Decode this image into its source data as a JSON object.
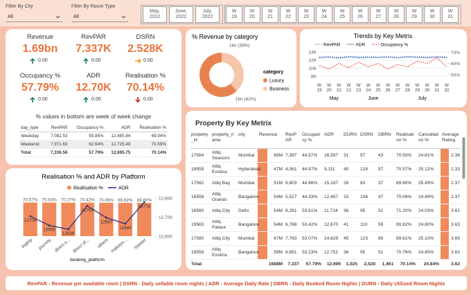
{
  "filters": [
    {
      "label": "Filter By City",
      "value": "All"
    },
    {
      "label": "Filter By Room Type",
      "value": "All"
    }
  ],
  "months": [
    "May, 2022",
    "June, 2022",
    "July, 2022"
  ],
  "weeks": [
    "W 19",
    "W 20",
    "W 21",
    "W 22",
    "W 23",
    "W 24",
    "W 25",
    "W 26",
    "W 27",
    "W 28",
    "W 29",
    "W 30",
    "W 31"
  ],
  "kpis": [
    {
      "title": "Revenue",
      "value": "1.69bn",
      "change": "0.00",
      "trend": "up"
    },
    {
      "title": "RevPAR",
      "value": "7.337K",
      "change": "0.00",
      "trend": "up"
    },
    {
      "title": "DSRN",
      "value": "2.528K",
      "change": "0.00",
      "trend": "flat"
    },
    {
      "title": "Occupancy %",
      "value": "57.79%",
      "change": "0.00",
      "trend": "up"
    },
    {
      "title": "ADR",
      "value": "12.70K",
      "change": "0.00",
      "trend": "up"
    },
    {
      "title": "Realisation %",
      "value": "70.14%",
      "change": "0.00",
      "trend": "down"
    }
  ],
  "kpi_note": "% values in bottom are week of week change",
  "day_type_table": {
    "columns": [
      "day_type",
      "RevPAR",
      "Occupancy %",
      "ADR",
      "Realisation %"
    ],
    "rows": [
      [
        "Weekday",
        "7,082.53",
        "55.85%",
        "12,485.84",
        "69.94%"
      ],
      [
        "Weekend",
        "7,971.63",
        "62.64%",
        "12,725.49",
        "70.59%"
      ],
      [
        "Total",
        "7,336.56",
        "57.79%",
        "12,695.75",
        "70.14%"
      ]
    ]
  },
  "chart_data": [
    {
      "type": "pie",
      "title": "% Revenue by category",
      "legend_title": "category",
      "categories": [
        "Luxury",
        "Business"
      ],
      "values": [
        62,
        38
      ],
      "value_labels": [
        "1bn (62%)",
        "1bn (38%)"
      ],
      "colors": [
        "#e8834f",
        "#f6c6aa"
      ]
    },
    {
      "type": "line",
      "title": "Trends by Key Metrix",
      "categories": [
        "W 19",
        "W 20",
        "W 21",
        "W 22",
        "W 23",
        "W 24",
        "W 25",
        "W 26",
        "W 27",
        "W 28",
        "W 29",
        "W 30",
        "W 31",
        "W 32"
      ],
      "x_groups": [
        {
          "label": "May",
          "from": "W 19",
          "to": "W 22"
        },
        {
          "label": "June",
          "from": "W 23",
          "to": "W 26"
        },
        {
          "label": "July",
          "from": "W 27",
          "to": "W 32"
        }
      ],
      "series": [
        {
          "name": "RevPAR",
          "color": "#4aa3df",
          "values": [
            12500,
            12600,
            12400,
            12700,
            12500,
            12600,
            12550,
            12650,
            12500,
            12700,
            12600,
            12500,
            12650,
            12550
          ]
        },
        {
          "name": "ADR",
          "color": "#1f3a93",
          "values": [
            12700,
            12800,
            12600,
            12850,
            12700,
            12750,
            12700,
            12800,
            12650,
            12850,
            12750,
            12700,
            12800,
            12700
          ]
        },
        {
          "name": "Occupancy %",
          "color": "#e8453c",
          "axis": "y2",
          "values": [
            58,
            55,
            60,
            56,
            61,
            57,
            60,
            55,
            59,
            57,
            62,
            60,
            65,
            57
          ]
        }
      ],
      "ylim": [
        7000,
        14500
      ],
      "yticks": [
        {
          "value": 8000,
          "label": "8K"
        },
        {
          "value": 10000,
          "label": "10K"
        },
        {
          "value": 12000,
          "label": "12K"
        },
        {
          "value": 14000,
          "label": "14K"
        }
      ],
      "y2lim": [
        45,
        72
      ],
      "y2ticks": [
        {
          "value": 50,
          "label": "50%"
        },
        {
          "value": 60,
          "label": "60%"
        },
        {
          "value": 70,
          "label": "70%"
        }
      ]
    },
    {
      "type": "bar_line",
      "title": "Realisation % and ADR by Platform",
      "x_label": "booking_platform",
      "categories": [
        "logtrip",
        "journey",
        "direct o...",
        "direct of...",
        "others",
        "makeyo...",
        "tripster"
      ],
      "series": [
        {
          "name": "Realisation %",
          "color": "#f08a5d",
          "values": [
            70.57,
            70.54,
            70.27,
            70.42,
            70.09,
            69.92,
            69.8
          ],
          "value_labels": [
            "70.57%",
            "70.54%",
            "70.27%",
            "70.42%",
            "70.09%",
            "69.92%",
            "69.80%"
          ]
        },
        {
          "name": "ADR",
          "color": "#1f2a7a",
          "axis": "y2",
          "values": [
            12705,
            12656,
            12636,
            12759,
            12697,
            12665,
            12778
          ]
        }
      ],
      "ylim": [
        0,
        80
      ],
      "y2lim": [
        12600,
        12800
      ],
      "y2ticks": [
        {
          "value": 12600,
          "label": "12,600"
        },
        {
          "value": 12700,
          "label": "12,700"
        },
        {
          "value": 12800,
          "label": "12,800"
        }
      ]
    }
  ],
  "property_table": {
    "title": "Property By Key Metrix",
    "columns": [
      "property_id",
      "property_name",
      "city",
      "Revenue",
      "RevPAR",
      "Occupancy %",
      "ADR",
      "DURN",
      "DSRN",
      "DBRN",
      "Realisation %",
      "Cancellation %",
      "Average Rating"
    ],
    "rows": [
      [
        "17564",
        "Atliq Seasons",
        "Mumbai",
        "65M",
        "7,397",
        "44.57%",
        "16,597",
        "31",
        "97",
        "43",
        "70.59%",
        "24.81%",
        "2.36"
      ],
      [
        "18559",
        "Atliq Exotica",
        "Hyderabad",
        "47M",
        "4,061",
        "44.57%",
        "9,111",
        "40",
        "128",
        "57",
        "70.57%",
        "25.12%",
        "2.33"
      ],
      [
        "17562",
        "Atliq Bay",
        "Mumbai",
        "51M",
        "6,803",
        "44.86%",
        "15,167",
        "26",
        "83",
        "37",
        "69.60%",
        "25.49%",
        "2.37"
      ],
      [
        "16558",
        "Atliq Grands",
        "Bangalore",
        "54M",
        "5,527",
        "44.33%",
        "12,467",
        "33",
        "106",
        "47",
        "70.06%",
        "24.49%",
        "2.37"
      ],
      [
        "16560",
        "Atliq City",
        "Delhi",
        "54M",
        "8,261",
        "53.61%",
        "11,714",
        "36",
        "95",
        "51",
        "71.20%",
        "24.03%",
        "3.61"
      ],
      [
        "19563",
        "Atliq Palace",
        "Bangalore",
        "54M",
        "6,768",
        "53.42%",
        "12,670",
        "41",
        "110",
        "59",
        "69.82%",
        "24.80%",
        "3.63"
      ],
      [
        "17560",
        "Atliq City",
        "Mumbai",
        "67M",
        "7,763",
        "53.07%",
        "14,629",
        "45",
        "123",
        "65",
        "69.61%",
        "25.10%",
        "3.65"
      ],
      [
        "19559",
        "Atliq Exotica",
        "Bangalore",
        "59M",
        "6,851",
        "53.23%",
        "12,751",
        "36",
        "95",
        "51",
        "70.76%",
        "24.45%",
        "3.62"
      ]
    ],
    "total": {
      "label": "Total",
      "values": [
        "1688M",
        "7,337",
        "57.79%",
        "12,696",
        "1,025",
        "2,528",
        "1,461",
        "70.14%",
        "24.84%",
        "3.62"
      ]
    }
  },
  "footer": "RevPAR - Revenue per available room | DSRN - Daily sellable room nights | ADR - Average Daily Rate | DBRN - Daily Booked Room Nights | DURN - Daily Utilized Room Nights"
}
